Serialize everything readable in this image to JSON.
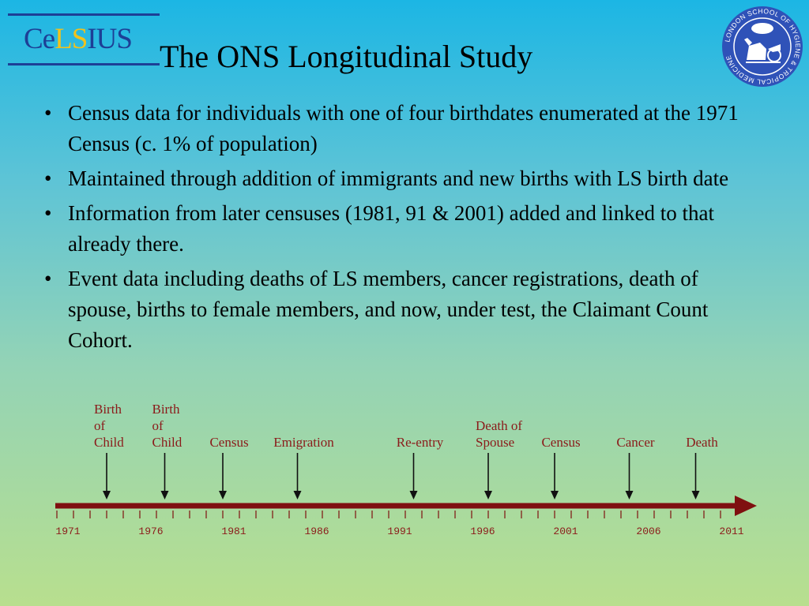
{
  "logo": {
    "part1": "Ce",
    "part2": "LS",
    "part3": "IUS"
  },
  "title": "The ONS Longitudinal Study",
  "seal": {
    "text": "LONDON SCHOOL OF HYGIENE & TROPICAL MEDICINE"
  },
  "bullets": [
    "Census data for individuals with one of four birthdates enumerated at the 1971 Census (c. 1% of population)",
    "Maintained through addition of immigrants and new births with LS birth date",
    "Information from later censuses (1981, 91 & 2001) added and linked to that already there.",
    "Event data including deaths of LS members, cancer registrations, death of spouse, births to female members, and now, under test, the Claimant Count Cohort."
  ],
  "timeline": {
    "events": [
      {
        "label": [
          "Birth",
          "of",
          "Child"
        ],
        "year": 1974
      },
      {
        "label": [
          "Birth",
          "of",
          "Child"
        ],
        "year": 1977.5
      },
      {
        "label": [
          "Census"
        ],
        "year": 1981
      },
      {
        "label": [
          "Emigration"
        ],
        "year": 1985.5
      },
      {
        "label": [
          "Re-entry"
        ],
        "year": 1992.5
      },
      {
        "label": [
          "Death of",
          "Spouse"
        ],
        "year": 1997
      },
      {
        "label": [
          "Census"
        ],
        "year": 2001
      },
      {
        "label": [
          "Cancer"
        ],
        "year": 2005.5
      },
      {
        "label": [
          "Death"
        ],
        "year": 2009.5
      }
    ],
    "year_labels": [
      "1971",
      "1976",
      "1981",
      "1986",
      "1991",
      "1996",
      "2001",
      "2006",
      "2011"
    ],
    "colors": {
      "axis": "#7f1010",
      "arrow": "#111111",
      "text": "#8b1a1a"
    }
  }
}
